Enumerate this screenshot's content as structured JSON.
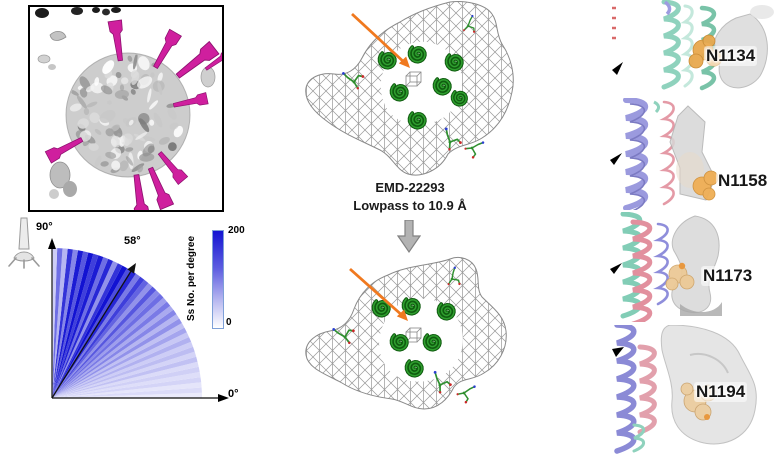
{
  "figure": {
    "panel_virion": {
      "description": "cryo-EM 3D map of virion with spike proteins"
    },
    "middle": {
      "caption_line1": "EMD-22293",
      "caption_line2": "Lowpass to 10.9 Å"
    },
    "glycan_panels": [
      {
        "label": "N1134"
      },
      {
        "label": "N1158"
      },
      {
        "label": "N1173"
      },
      {
        "label": "N1194"
      }
    ]
  },
  "fan_chart": {
    "label_90": "90°",
    "label_0": "0°",
    "label_peak": "58°",
    "colorbar_label": "Ss No. per degree",
    "colorbar_max": "200",
    "colorbar_min": "0"
  },
  "colors": {
    "spike_magenta": "#cf1f9e",
    "helix_green": "#156b15",
    "arrow_orange": "#f0791f",
    "fan_blue_max": "#1414d2",
    "glycan_orange": "#e8a84e",
    "glycan_tan": "#ecc996"
  },
  "chart_data": {
    "type": "area",
    "subtype": "polar_fan_histogram",
    "title": "",
    "angle_axis": {
      "min_deg": 0,
      "max_deg": 90,
      "label_min": "0°",
      "label_max": "90°"
    },
    "annotation": {
      "angle_deg": 58,
      "label": "58°"
    },
    "colorbar": {
      "label": "Ss No. per degree",
      "min": 0,
      "max": 200,
      "position": "right"
    },
    "grid": false,
    "wedge_deg_step": 2,
    "values_note": "spike-count per 2-degree wedge, from 0deg (horizontal) to 90deg (vertical)",
    "values": [
      18,
      30,
      22,
      36,
      28,
      40,
      30,
      52,
      36,
      56,
      42,
      66,
      46,
      76,
      52,
      92,
      62,
      102,
      72,
      112,
      82,
      122,
      100,
      142,
      92,
      132,
      162,
      112,
      182,
      150,
      200,
      172,
      92,
      182,
      122,
      192,
      162,
      200,
      142,
      192,
      102,
      172,
      62,
      122,
      42
    ]
  }
}
